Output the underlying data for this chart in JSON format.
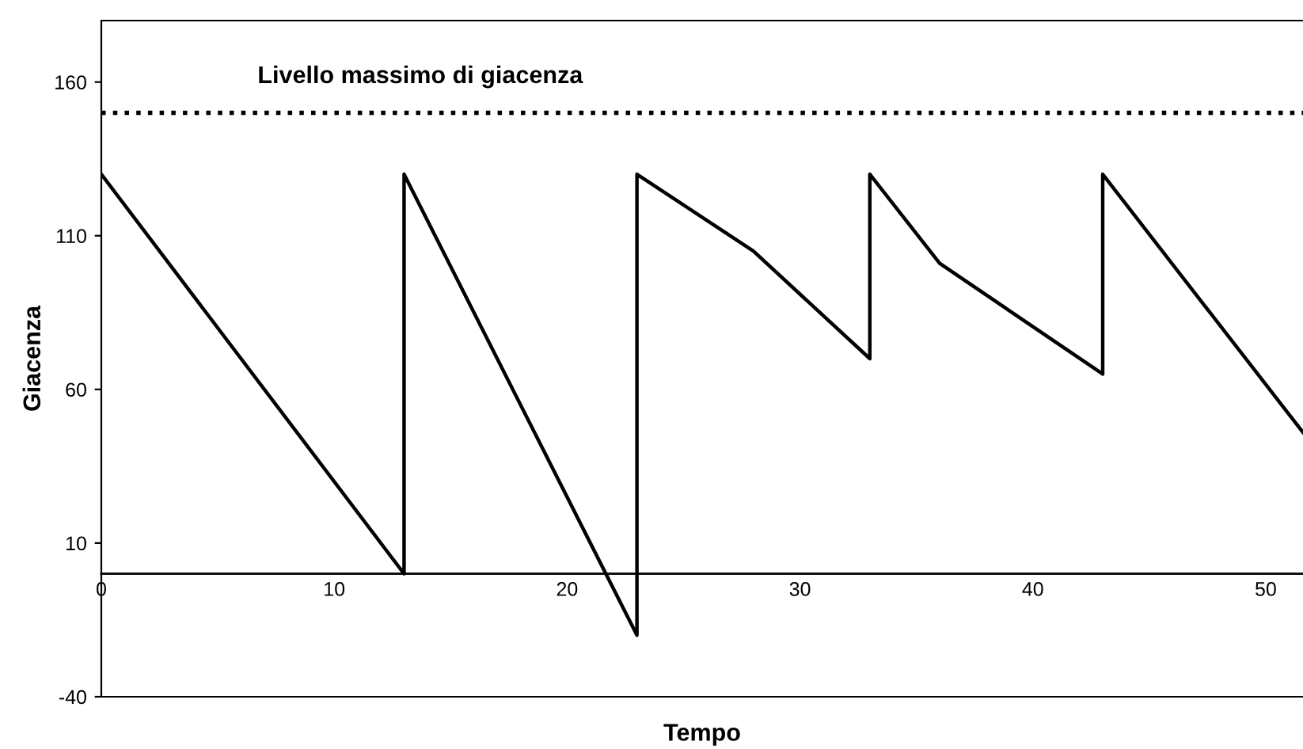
{
  "chart_data": {
    "type": "line",
    "xlabel": "Tempo",
    "ylabel": "Giacenza",
    "x": [
      0,
      13,
      13,
      23,
      23,
      28,
      33,
      33,
      36,
      43,
      43,
      51.6
    ],
    "series": [
      {
        "color": "#000000",
        "values": [
          130,
          0,
          130,
          -20,
          130,
          105,
          70,
          130,
          101,
          65,
          130,
          46
        ]
      }
    ],
    "xlim": [
      0,
      51.6
    ],
    "xticks": [
      0,
      10,
      20,
      30,
      40,
      50
    ],
    "ylim": [
      -40,
      180
    ],
    "yticks": [
      -40,
      10,
      60,
      110,
      160
    ],
    "ref_lines": [
      {
        "axis": "y",
        "value": 150,
        "label": "Livello massimo di giacenza",
        "color": "#000000",
        "line_style": "dotted"
      }
    ],
    "grid": false,
    "marker": "none",
    "line_style": "solid"
  }
}
